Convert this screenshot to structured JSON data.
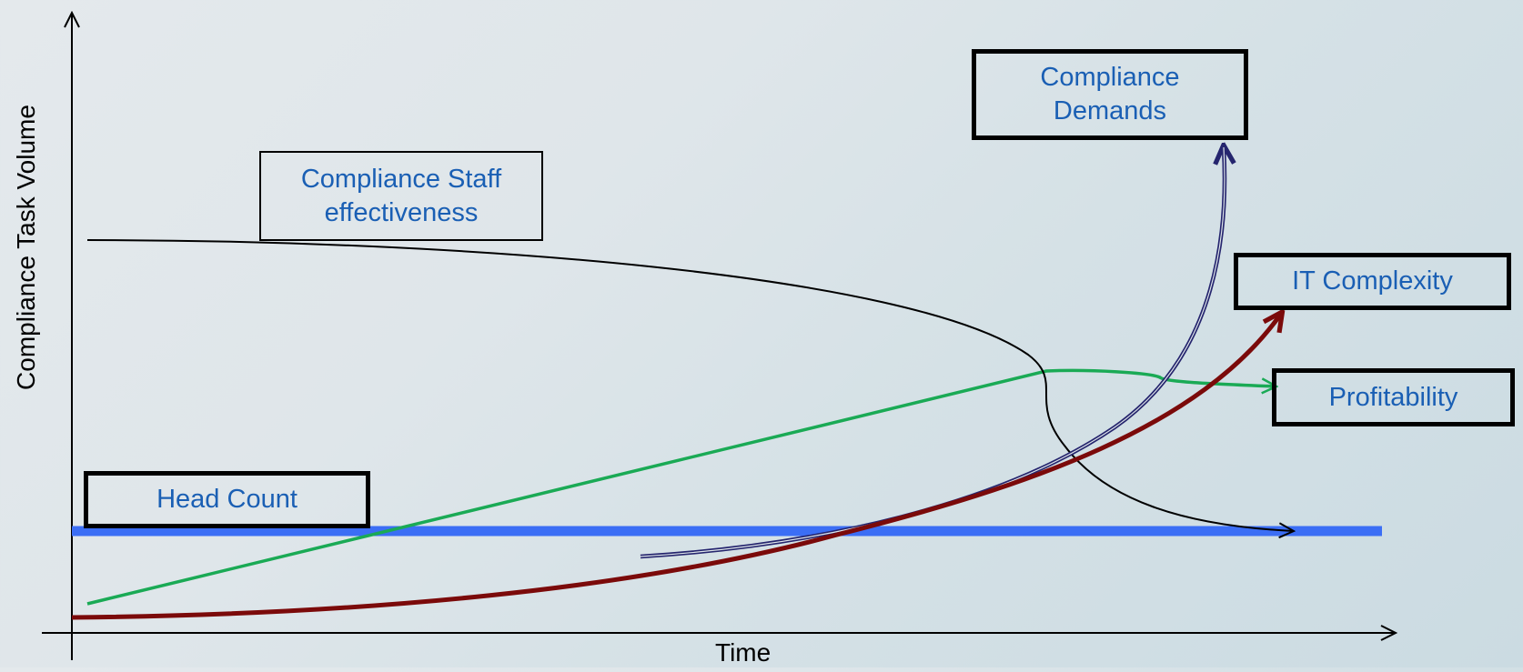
{
  "axes": {
    "x_label": "Time",
    "y_label": "Compliance Task Volume"
  },
  "labels": {
    "compliance_demands": "Compliance\nDemands",
    "compliance_staff": "Compliance Staff\neffectiveness",
    "it_complexity": "IT Complexity",
    "profitability": "Profitability",
    "head_count": "Head Count"
  },
  "colors": {
    "head_count": "#3b6ef5",
    "profitability": "#1aaa55",
    "it_complexity": "#7b0a0a",
    "compliance_demands": "#25256e",
    "staff_effectiveness": "#000000",
    "label_text": "#1a5fb4"
  }
}
